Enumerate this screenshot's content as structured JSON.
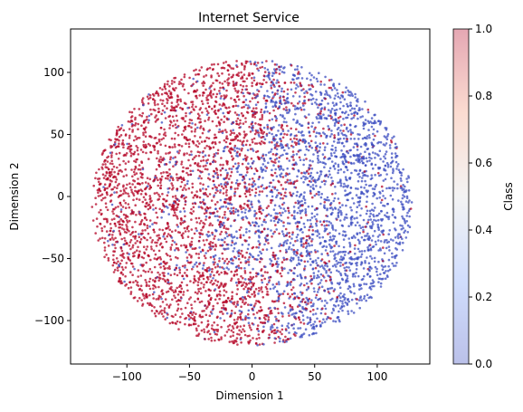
{
  "chart_data": {
    "type": "scatter",
    "title": "Internet Service",
    "xlabel": "Dimension 1",
    "ylabel": "Dimension 2",
    "xlim": [
      -145,
      142
    ],
    "ylim": [
      -135,
      135
    ],
    "xticks": [
      -100,
      -50,
      0,
      50,
      100
    ],
    "yticks": [
      -100,
      -50,
      0,
      50,
      100
    ],
    "grid": false,
    "colorbar": {
      "label": "Class",
      "range": [
        0.0,
        1.0
      ],
      "ticks": [
        0.0,
        0.2,
        0.4,
        0.6,
        0.8,
        1.0
      ],
      "tick_labels": [
        "0.0",
        "0.2",
        "0.4",
        "0.6",
        "0.8",
        "1.0"
      ],
      "colormap": "coolwarm",
      "colors": {
        "low": "#3b4cc0",
        "mid": "#dddddd",
        "high": "#b40426"
      }
    },
    "classes": [
      {
        "value": 0,
        "color": "#3b4cc0",
        "approx_region": "central and right portion of the disk"
      },
      {
        "value": 1,
        "color": "#b40426",
        "approx_region": "left rim, upper-left and lower-left arcs"
      }
    ],
    "point_cloud": {
      "shape": "roughly circular t-SNE embedding",
      "center": [
        0,
        -5
      ],
      "radius_x": 128,
      "radius_y": 115
    }
  }
}
